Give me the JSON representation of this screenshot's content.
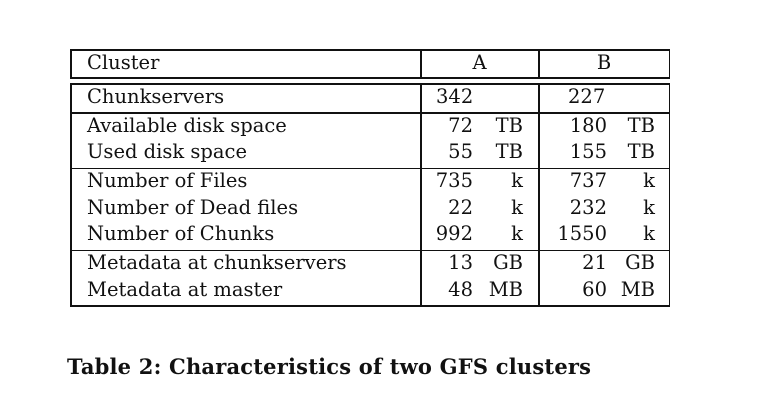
{
  "table": {
    "headers": {
      "cluster": "Cluster",
      "a": "A",
      "b": "B"
    },
    "groups": [
      [
        {
          "label": "Chunkservers",
          "a": "342",
          "a_unit": "",
          "b": "227",
          "b_unit": ""
        }
      ],
      [
        {
          "label": "Available disk space",
          "a": "72",
          "a_unit": "TB",
          "b": "180",
          "b_unit": "TB"
        },
        {
          "label": "Used disk space",
          "a": "55",
          "a_unit": "TB",
          "b": "155",
          "b_unit": "TB"
        }
      ],
      [
        {
          "label": "Number of Files",
          "a": "735",
          "a_unit": "k",
          "b": "737",
          "b_unit": "k"
        },
        {
          "label": "Number of Dead files",
          "a": "22",
          "a_unit": "k",
          "b": "232",
          "b_unit": "k"
        },
        {
          "label": "Number of Chunks",
          "a": "992",
          "a_unit": "k",
          "b": "1550",
          "b_unit": "k"
        }
      ],
      [
        {
          "label": "Metadata at chunkservers",
          "a": "13",
          "a_unit": "GB",
          "b": "21",
          "b_unit": "GB"
        },
        {
          "label": "Metadata at master",
          "a": "48",
          "a_unit": "MB",
          "b": "60",
          "b_unit": "MB"
        }
      ]
    ]
  },
  "caption": "Table 2: Characteristics of two GFS clusters"
}
